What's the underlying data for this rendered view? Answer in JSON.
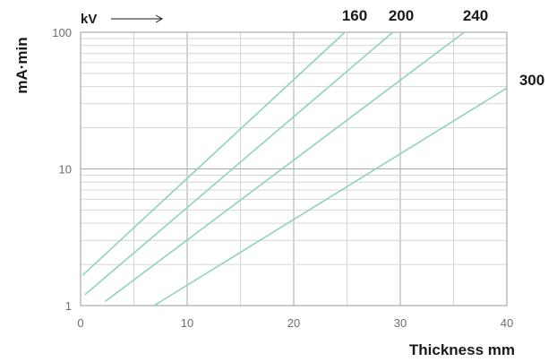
{
  "chart_data": {
    "type": "line",
    "ylabel": "mA·min",
    "xlabel": "Thickness mm",
    "series_unit_label": "kV",
    "x_ticks": [
      "0",
      "10",
      "20",
      "30",
      "40"
    ],
    "y_ticks": [
      "1",
      "10",
      "100"
    ],
    "xlim": [
      0,
      40
    ],
    "ylim": [
      1,
      100
    ],
    "y_scale": "log",
    "grid": true,
    "line_color": "#8fd3b8",
    "series": [
      {
        "name": "160",
        "x": [
          0.2,
          24.8
        ],
        "y": [
          1.67,
          100
        ]
      },
      {
        "name": "200",
        "x": [
          0.4,
          29.3
        ],
        "y": [
          1.2,
          100
        ]
      },
      {
        "name": "240",
        "x": [
          2.3,
          36
        ],
        "y": [
          1.07,
          100
        ]
      },
      {
        "name": "300",
        "x": [
          6.9,
          40
        ],
        "y": [
          1.0,
          39
        ]
      }
    ]
  }
}
